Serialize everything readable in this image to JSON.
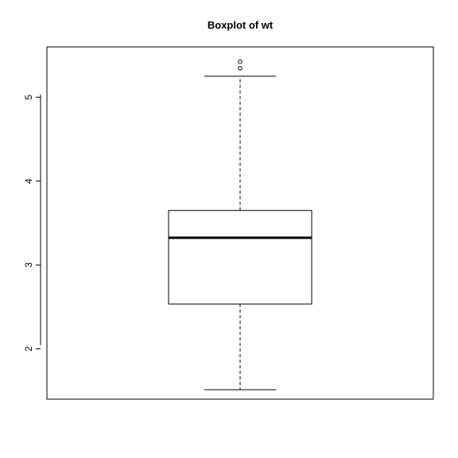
{
  "chart_data": {
    "type": "boxplot",
    "title": "Boxplot of wt",
    "xlabel": "",
    "ylabel": "",
    "ylim": [
      1.4,
      5.6
    ],
    "yticks": [
      2,
      3,
      4,
      5
    ],
    "ytick_labels": [
      "2",
      "3",
      "4",
      "5"
    ],
    "grid": false,
    "box": {
      "lower_whisker": 1.513,
      "q1": 2.535,
      "median": 3.325,
      "q3": 3.65,
      "upper_whisker": 5.25,
      "outliers": [
        5.345,
        5.424
      ]
    }
  }
}
